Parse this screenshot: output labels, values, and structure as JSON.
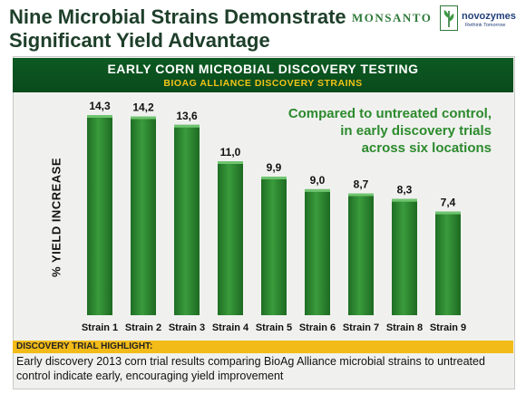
{
  "header": {
    "title_line1": "Nine Microbial Strains Demonstrate",
    "title_line2": "Significant Yield Advantage"
  },
  "logos": {
    "monsanto": "MONSANTO",
    "novozymes": "novozymes",
    "novozymes_tagline": "Rethink Tomorrow"
  },
  "banner": {
    "line1": "EARLY CORN MICROBIAL DISCOVERY TESTING",
    "line2": "BIOAG ALLIANCE DISCOVERY STRAINS"
  },
  "annotation": {
    "line1": "Compared to untreated control,",
    "line2": "in early discovery trials",
    "line3": "across six locations"
  },
  "highlight": {
    "label": "DISCOVERY TRIAL HIGHLIGHT:",
    "text": "Early discovery 2013 corn trial results comparing BioAg Alliance microbial strains to untreated control indicate early, encouraging yield improvement"
  },
  "colors": {
    "bar": "#2e8a2e",
    "banner": "#0c5a22",
    "banner_subtitle": "#f2c318",
    "highlight_band": "#f2bb18"
  },
  "chart_data": {
    "type": "bar",
    "title": "EARLY CORN MICROBIAL DISCOVERY TESTING",
    "subtitle": "BIOAG ALLIANCE DISCOVERY STRAINS",
    "xlabel": "",
    "ylabel": "% YIELD INCREASE",
    "categories": [
      "Strain 1",
      "Strain 2",
      "Strain 3",
      "Strain 4",
      "Strain 5",
      "Strain 6",
      "Strain 7",
      "Strain 8",
      "Strain 9"
    ],
    "values": [
      14.3,
      14.2,
      13.6,
      11.0,
      9.9,
      9.0,
      8.7,
      8.3,
      7.4
    ],
    "data_labels": [
      "14,3",
      "14,2",
      "13,6",
      "11,0",
      "9,9",
      "9,0",
      "8,7",
      "8,3",
      "7,4"
    ],
    "ylim": [
      0,
      14.3
    ],
    "grid": false,
    "legend": "none"
  }
}
